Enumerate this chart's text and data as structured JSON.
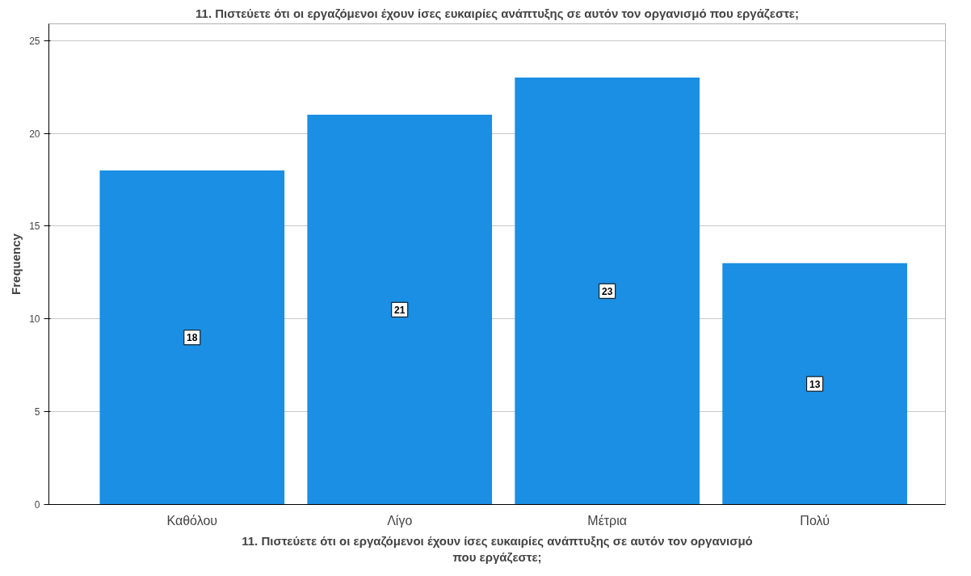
{
  "chart_data": {
    "type": "bar",
    "title": "11. Πιστεύετε ότι οι εργαζόμενοι έχουν ίσες ευκαιρίες ανάπτυξης σε αυτόν τον οργανισμό που εργάζεστε;",
    "xlabel": "11. Πιστεύετε ότι οι εργαζόμενοι έχουν ίσες ευκαιρίες ανάπτυξης σε αυτόν τον οργανισμό που εργάζεστε;",
    "ylabel": "Frequency",
    "categories": [
      "Καθόλου",
      "Λίγο",
      "Μέτρια",
      "Πολύ"
    ],
    "values": [
      18,
      21,
      23,
      13
    ],
    "color": "#1a8fe3",
    "ylim": [
      0,
      25.9
    ],
    "yticks": [
      0,
      5,
      10,
      15,
      20,
      25
    ],
    "grid": "y",
    "data_labels": true
  }
}
